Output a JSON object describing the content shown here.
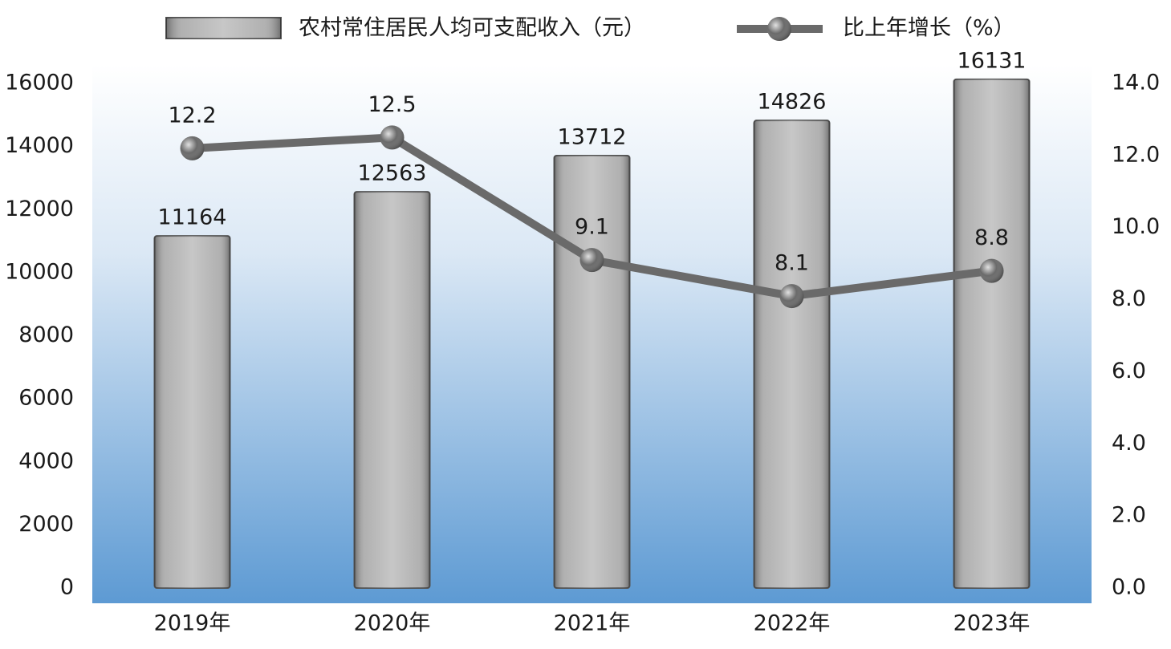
{
  "chart_data": {
    "type": "bar",
    "categories": [
      "2019年",
      "2020年",
      "2021年",
      "2022年",
      "2023年"
    ],
    "series": [
      {
        "name": "农村常住居民人均可支配收入（元）",
        "type": "bar",
        "color": "#a9a9a9",
        "values": [
          11164,
          12563,
          13712,
          14826,
          16131
        ]
      },
      {
        "name": "比上年增长（%）",
        "type": "line",
        "axis": "y2",
        "color": "#6a6a6a",
        "values": [
          12.2,
          12.5,
          9.1,
          8.1,
          8.8
        ]
      }
    ],
    "ylim": [
      0,
      16000
    ],
    "yticks": [
      0,
      2000,
      4000,
      6000,
      8000,
      10000,
      12000,
      14000,
      16000
    ],
    "y2lim": [
      0,
      14
    ],
    "y2ticks": [
      {
        "value": 0,
        "label": "0.0"
      },
      {
        "value": 2,
        "label": "2.0"
      },
      {
        "value": 4,
        "label": "4.0"
      },
      {
        "value": 6,
        "label": "6.0"
      },
      {
        "value": 8,
        "label": "8.0"
      },
      {
        "value": 10,
        "label": "10.0"
      },
      {
        "value": 12,
        "label": "12.0"
      },
      {
        "value": 14,
        "label": "14.0"
      }
    ],
    "legend": "top"
  }
}
